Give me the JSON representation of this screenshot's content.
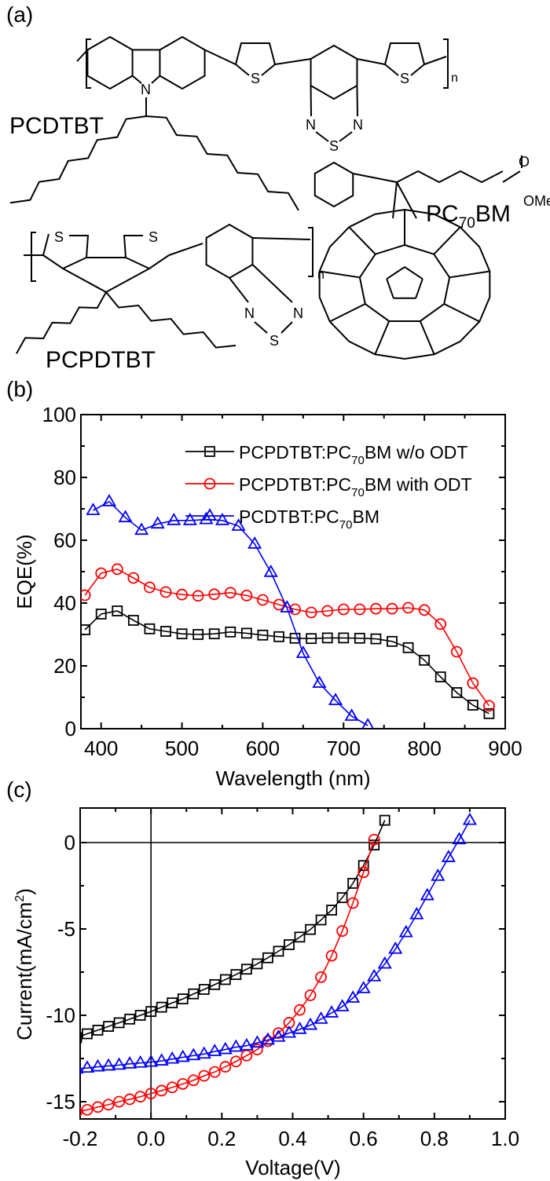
{
  "panels": {
    "a": "(a)",
    "b": "(b)",
    "c": "(c)"
  },
  "structures": {
    "pcdtbt": {
      "name": "PCDTBT",
      "atoms": {
        "N": "N",
        "S": "S",
        "n": "n"
      }
    },
    "pcpdtbt": {
      "name": "PCPDTBT",
      "atoms": {
        "N": "N",
        "S": "S",
        "n": "n"
      }
    },
    "pc70bm": {
      "name_prefix": "PC",
      "name_sub": "70",
      "name_suffix": "BM",
      "atoms": {
        "O": "O",
        "OMe": "OMe"
      }
    }
  },
  "chart_data": [
    {
      "type": "line",
      "panel": "(b)",
      "xlabel": "Wavelength (nm)",
      "ylabel": "EQE(%)",
      "xlim": [
        375,
        900
      ],
      "ylim": [
        0,
        100
      ],
      "xticks": [
        400,
        500,
        600,
        700,
        800,
        900
      ],
      "yticks": [
        0,
        20,
        40,
        60,
        80,
        100
      ],
      "grid": false,
      "legend_position": "top-right",
      "series": [
        {
          "name": "PCPDTBT:PC70BM w/o ODT",
          "name_parts": [
            "PCPDTBT:PC",
            "70",
            "BM w/o ODT"
          ],
          "color": "#000000",
          "marker": "square",
          "x": [
            380,
            400,
            420,
            440,
            460,
            480,
            500,
            520,
            540,
            560,
            580,
            600,
            620,
            640,
            660,
            680,
            700,
            720,
            740,
            760,
            780,
            800,
            820,
            840,
            860,
            880
          ],
          "y": [
            31.5,
            36.5,
            37.5,
            34.5,
            31.8,
            31,
            30.2,
            30,
            30.2,
            30.8,
            30.4,
            29.8,
            29.3,
            28.8,
            28.7,
            28.9,
            28.9,
            28.8,
            28.6,
            27.8,
            25.8,
            21.8,
            16.5,
            11.5,
            7.5,
            4.8
          ]
        },
        {
          "name": "PCPDTBT:PC70BM with ODT",
          "name_parts": [
            "PCPDTBT:PC",
            "70",
            "BM with ODT"
          ],
          "color": "#ff0000",
          "marker": "circle",
          "x": [
            380,
            400,
            420,
            440,
            460,
            480,
            500,
            520,
            540,
            560,
            580,
            600,
            620,
            640,
            660,
            680,
            700,
            720,
            740,
            760,
            780,
            800,
            820,
            840,
            860,
            880
          ],
          "y": [
            42.5,
            49.5,
            50.8,
            48,
            45,
            43.5,
            42.7,
            42.3,
            42.8,
            43.3,
            42.4,
            41,
            39.5,
            38,
            37,
            37.5,
            38,
            38,
            38.2,
            38.2,
            38.5,
            37.8,
            33.3,
            24.5,
            14.5,
            7.3
          ]
        },
        {
          "name": "PCDTBT:PC70BM",
          "name_parts": [
            "PCDTBT:PC",
            "70",
            "BM"
          ],
          "color": "#0000ff",
          "marker": "triangle",
          "x": [
            390,
            410,
            430,
            450,
            470,
            490,
            510,
            530,
            550,
            570,
            590,
            610,
            630,
            650,
            670,
            690,
            710,
            730
          ],
          "y": [
            69.5,
            72.3,
            67.2,
            63.2,
            65.2,
            66.3,
            66.3,
            66.6,
            66.3,
            64.5,
            58.8,
            49.8,
            38.5,
            24,
            14.5,
            9,
            4,
            1
          ]
        }
      ]
    },
    {
      "type": "line",
      "panel": "(c)",
      "xlabel": "Voltage(V)",
      "ylabel_parts": [
        "Current(mA/cm",
        "2",
        ")"
      ],
      "xlim": [
        -0.2,
        1.0
      ],
      "ylim": [
        -16,
        2
      ],
      "xticks": [
        "-0.2",
        "0.0",
        "0.2",
        "0.4",
        "0.6",
        "0.8",
        "1.0"
      ],
      "yticks": [
        "0",
        "-5",
        "-10",
        "-15"
      ],
      "ytick_values": [
        0,
        -5,
        -10,
        -15
      ],
      "grid": false,
      "zero_lines": true,
      "series": [
        {
          "color": "#000000",
          "marker": "square",
          "x": [
            -0.21,
            -0.18,
            -0.15,
            -0.12,
            -0.09,
            -0.06,
            -0.03,
            0,
            0.03,
            0.06,
            0.09,
            0.12,
            0.15,
            0.18,
            0.21,
            0.24,
            0.27,
            0.3,
            0.33,
            0.36,
            0.39,
            0.42,
            0.45,
            0.48,
            0.51,
            0.54,
            0.57,
            0.6,
            0.63,
            0.66
          ],
          "y": [
            -11.29,
            -11.07,
            -10.86,
            -10.64,
            -10.43,
            -10.22,
            -10,
            -9.78,
            -9.53,
            -9.28,
            -9.05,
            -8.76,
            -8.5,
            -8.22,
            -7.93,
            -7.64,
            -7.33,
            -7.02,
            -6.67,
            -6.29,
            -5.91,
            -5.47,
            -5.03,
            -4.48,
            -3.91,
            -3.19,
            -2.36,
            -1.33,
            -0.14,
            1.29
          ]
        },
        {
          "color": "#ff0000",
          "marker": "circle",
          "x": [
            -0.21,
            -0.18,
            -0.15,
            -0.12,
            -0.09,
            -0.06,
            -0.03,
            0,
            0.03,
            0.06,
            0.09,
            0.12,
            0.15,
            0.18,
            0.21,
            0.24,
            0.27,
            0.3,
            0.33,
            0.36,
            0.39,
            0.42,
            0.45,
            0.48,
            0.51,
            0.54,
            0.57,
            0.6,
            0.63
          ],
          "y": [
            -15.6,
            -15.47,
            -15.31,
            -15.17,
            -15,
            -14.86,
            -14.71,
            -14.53,
            -14.36,
            -14.17,
            -13.97,
            -13.76,
            -13.5,
            -13.28,
            -12.98,
            -12.67,
            -12.33,
            -11.98,
            -11.5,
            -11.03,
            -10.43,
            -9.69,
            -8.84,
            -7.79,
            -6.55,
            -5.12,
            -3.5,
            -1.72,
            0.17
          ]
        },
        {
          "color": "#0000ff",
          "marker": "triangle",
          "x": [
            -0.21,
            -0.18,
            -0.15,
            -0.12,
            -0.09,
            -0.06,
            -0.03,
            0,
            0.03,
            0.06,
            0.09,
            0.12,
            0.15,
            0.18,
            0.21,
            0.24,
            0.27,
            0.3,
            0.33,
            0.36,
            0.39,
            0.42,
            0.45,
            0.48,
            0.51,
            0.54,
            0.57,
            0.6,
            0.63,
            0.66,
            0.69,
            0.72,
            0.75,
            0.78,
            0.81,
            0.84,
            0.87,
            0.9
          ],
          "y": [
            -13.1,
            -13.05,
            -12.98,
            -12.93,
            -12.88,
            -12.81,
            -12.76,
            -12.71,
            -12.64,
            -12.53,
            -12.43,
            -12.33,
            -12.24,
            -12.09,
            -11.98,
            -11.84,
            -11.76,
            -11.6,
            -11.43,
            -11.26,
            -11.03,
            -10.81,
            -10.57,
            -10.22,
            -9.86,
            -9.5,
            -9,
            -8.45,
            -7.76,
            -7.03,
            -6.17,
            -5.21,
            -4.17,
            -3.07,
            -1.95,
            -0.86,
            0.17,
            1.29
          ]
        }
      ]
    }
  ]
}
